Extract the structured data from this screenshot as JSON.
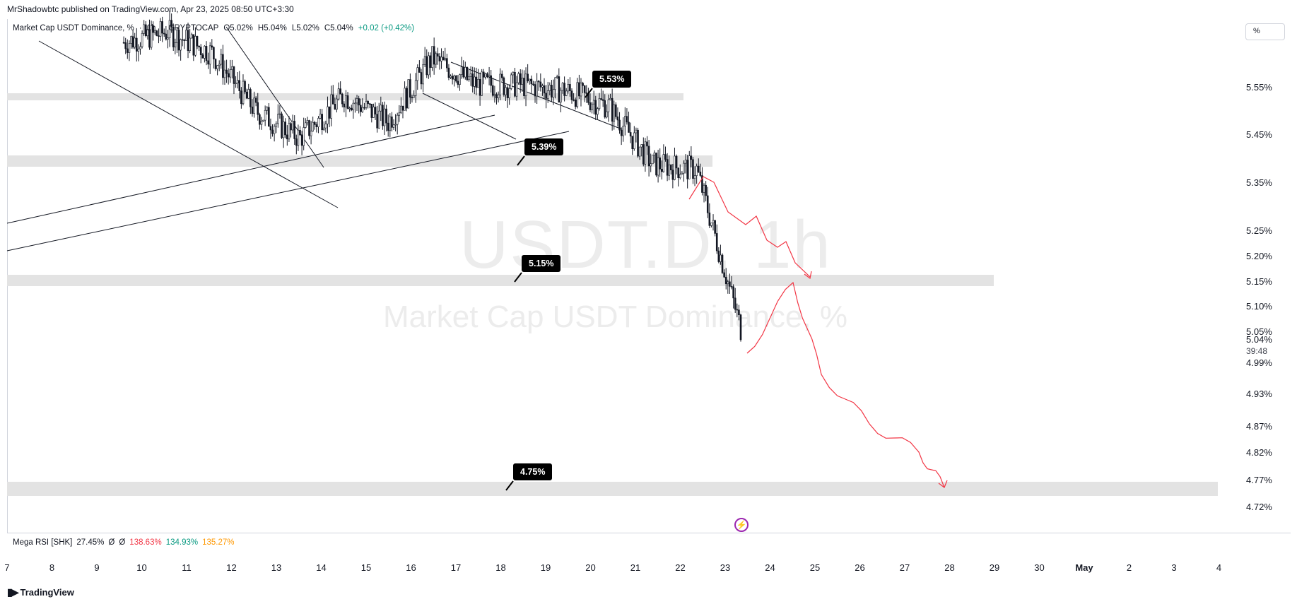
{
  "published": "MrShadowbtc published on TradingView.com, Apr 23, 2025 08:50 UTC+3:30",
  "legend": {
    "symbol": "Market Cap USDT Dominance, %",
    "sep": "·",
    "interval": "1h",
    "source": "CRYPTOCAP",
    "open": "O5.02%",
    "high": "H5.04%",
    "low": "L5.02%",
    "close": "C5.04%",
    "change": "+0.02 (+0.42%)"
  },
  "unit_button": "%",
  "watermark": {
    "ticker": "USDT.D, 1h",
    "name": "Market Cap USDT Dominance, %"
  },
  "rsi": {
    "name": "Mega RSI [SHK]",
    "v1": "27.45%",
    "v2": "Ø",
    "v3": "Ø",
    "v4": "138.63%",
    "v5": "134.93%",
    "v6": "135.27%",
    "colors": {
      "v4": "#f23645",
      "v5": "#089981",
      "v6": "#ff9800"
    }
  },
  "countdown": "39:48",
  "footer": "TradingView",
  "colors": {
    "candle": "#131722",
    "zone": "#e3e3e3",
    "projection": "#f23645",
    "callout_bg": "#000000"
  },
  "chart_data": {
    "type": "candlestick",
    "symbol": "USDT.D",
    "interval": "1h",
    "ylim": [
      4.7,
      5.6
    ],
    "price_ticks": [
      "5.55%",
      "5.45%",
      "5.35%",
      "5.25%",
      "5.20%",
      "5.15%",
      "5.10%",
      "5.05%",
      "4.99%",
      "4.93%",
      "4.87%",
      "4.82%",
      "4.77%",
      "4.72%"
    ],
    "current_price": "5.04%",
    "date_ticks": [
      "7",
      "8",
      "9",
      "10",
      "11",
      "12",
      "13",
      "14",
      "15",
      "16",
      "17",
      "18",
      "19",
      "20",
      "21",
      "22",
      "23",
      "24",
      "25",
      "26",
      "27",
      "28",
      "29",
      "30",
      "May",
      "2",
      "3",
      "4"
    ],
    "levels": [
      {
        "label": "5.53%",
        "value": 5.53
      },
      {
        "label": "5.39%",
        "value": 5.39
      },
      {
        "label": "5.15%",
        "value": 5.15
      },
      {
        "label": "4.75%",
        "value": 4.75
      }
    ],
    "close_path_daily": [
      {
        "date": "Apr 9",
        "close": 5.58
      },
      {
        "date": "Apr 10",
        "close": 5.6
      },
      {
        "date": "Apr 11",
        "close": 5.56
      },
      {
        "date": "Apr 12",
        "close": 5.45
      },
      {
        "date": "Apr 13",
        "close": 5.4
      },
      {
        "date": "Apr 14",
        "close": 5.48
      },
      {
        "date": "Apr 15",
        "close": 5.43
      },
      {
        "date": "Apr 16",
        "close": 5.55
      },
      {
        "date": "Apr 17",
        "close": 5.5
      },
      {
        "date": "Apr 18",
        "close": 5.5
      },
      {
        "date": "Apr 19",
        "close": 5.49
      },
      {
        "date": "Apr 20",
        "close": 5.46
      },
      {
        "date": "Apr 21",
        "close": 5.35
      },
      {
        "date": "Apr 22",
        "close": 5.34
      },
      {
        "date": "Apr 23",
        "close": 5.04
      }
    ],
    "projection": [
      {
        "date": "Apr 23",
        "value": 5.04
      },
      {
        "date": "Apr 24.5",
        "value": 5.15
      },
      {
        "date": "Apr 25",
        "value": 4.98
      },
      {
        "date": "Apr 26",
        "value": 4.88
      },
      {
        "date": "Apr 27",
        "value": 4.85
      },
      {
        "date": "Apr 27.8",
        "value": 4.75
      }
    ]
  }
}
